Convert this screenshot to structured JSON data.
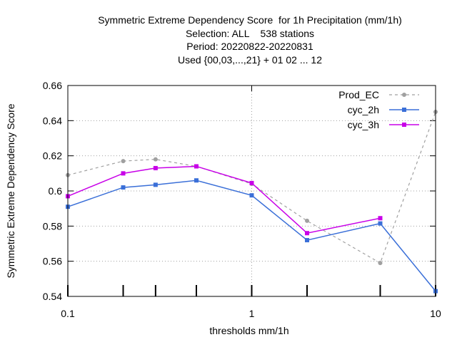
{
  "chart_data": {
    "type": "line",
    "title_lines": [
      "Symmetric Extreme Dependency Score  for 1h Precipitation (mm/1h)",
      "Selection: ALL    538 stations",
      "Period: 20220822-20220831",
      "Used {00,03,...,21} + 01 02 ... 12"
    ],
    "xlabel": "thresholds mm/1h",
    "ylabel": "Symmetric Extreme Dependency Score",
    "x_scale": "log",
    "xlim": [
      0.1,
      10
    ],
    "ylim": [
      0.54,
      0.66
    ],
    "x_ticks": [
      0.1,
      1,
      10
    ],
    "x_tick_labels": [
      "0.1",
      "1",
      "10"
    ],
    "x_minor_ticks": [
      0.2,
      0.3,
      0.5,
      2,
      5
    ],
    "y_ticks": [
      0.54,
      0.56,
      0.58,
      0.6,
      0.62,
      0.64,
      0.66
    ],
    "y_tick_labels": [
      "0.54",
      "0.56",
      "0.58",
      "0.6",
      "0.62",
      "0.64",
      "0.66"
    ],
    "grid": true,
    "legend_position": "top-right",
    "x": [
      0.1,
      0.2,
      0.3,
      0.5,
      1,
      2,
      5,
      10
    ],
    "series": [
      {
        "name": "Prod_EC",
        "color": "#a0a0a0",
        "dashed": true,
        "values": [
          0.609,
          0.617,
          0.618,
          0.614,
          0.604,
          0.583,
          0.559,
          0.645
        ]
      },
      {
        "name": "cyc_2h",
        "color": "#3a6fd8",
        "dashed": false,
        "values": [
          0.591,
          0.602,
          0.6035,
          0.606,
          0.5975,
          0.572,
          0.5815,
          0.543
        ]
      },
      {
        "name": "cyc_3h",
        "color": "#c800e8",
        "dashed": false,
        "values": [
          0.597,
          0.61,
          0.613,
          0.614,
          0.6045,
          0.576,
          0.5845,
          null
        ]
      }
    ]
  }
}
